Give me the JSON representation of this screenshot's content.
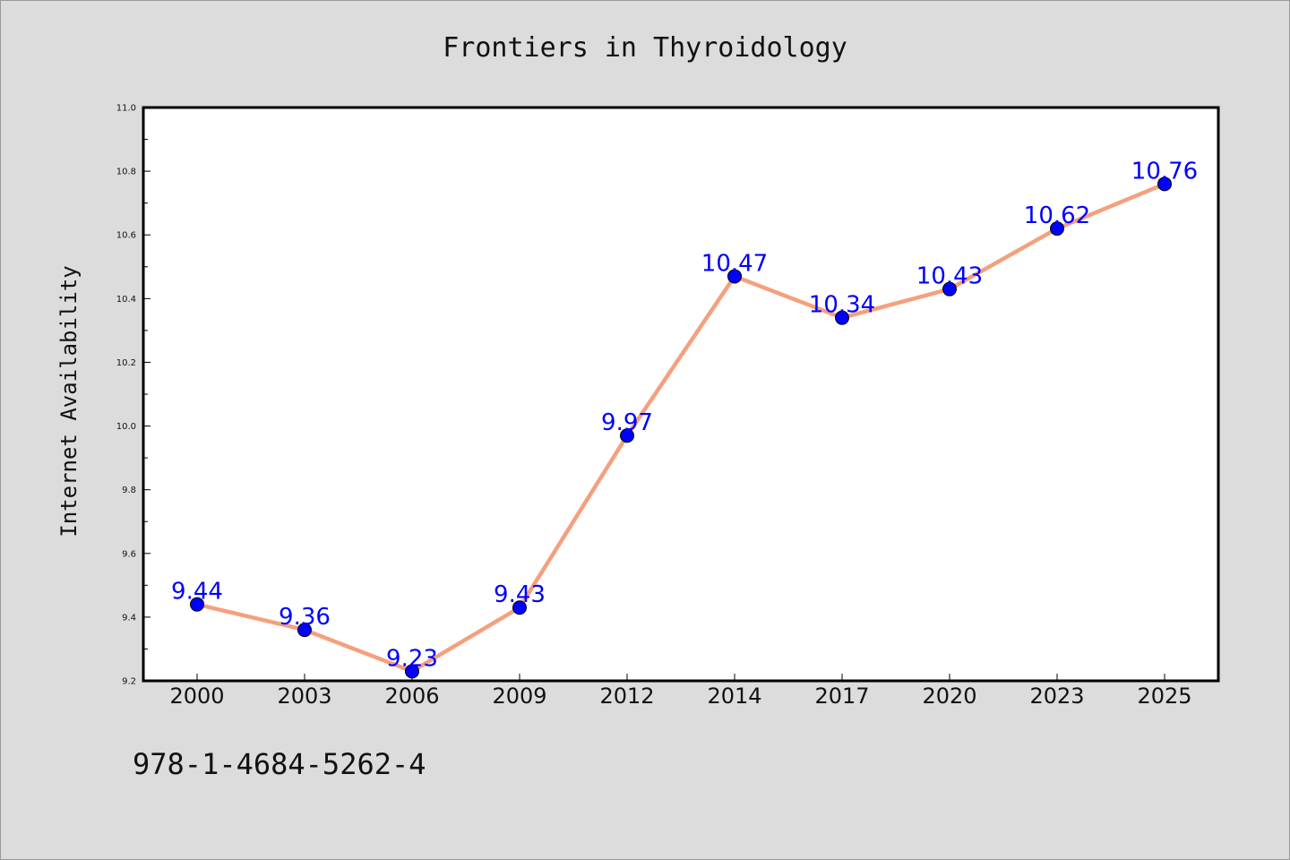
{
  "chart_data": {
    "type": "line",
    "title": "Frontiers in Thyroidology",
    "ylabel": "Internet Availability",
    "xlabel": "",
    "categories": [
      "2000",
      "2003",
      "2006",
      "2009",
      "2012",
      "2014",
      "2017",
      "2020",
      "2023",
      "2025"
    ],
    "series": [
      {
        "values": [
          9.44,
          9.36,
          9.23,
          9.43,
          9.97,
          10.47,
          10.34,
          10.43,
          10.62,
          10.76
        ]
      }
    ],
    "data_labels": [
      "9.44",
      "9.36",
      "9.23",
      "9.43",
      "9.97",
      "10.47",
      "10.34",
      "10.43",
      "10.62",
      "10.76"
    ],
    "ylim": [
      9.2,
      11.0
    ],
    "yticks": [
      "9.2",
      "9.4",
      "9.6",
      "9.8",
      "10.0",
      "10.2",
      "10.4",
      "10.6",
      "10.8",
      "11.0"
    ],
    "grid": false,
    "colors": {
      "line": "#f4a07e",
      "marker": "#0000ff",
      "label": "#0000ff",
      "background": "#dcdcdc",
      "plot_bg": "#ffffff"
    }
  },
  "footer": {
    "isbn": "978-1-4684-5262-4"
  }
}
